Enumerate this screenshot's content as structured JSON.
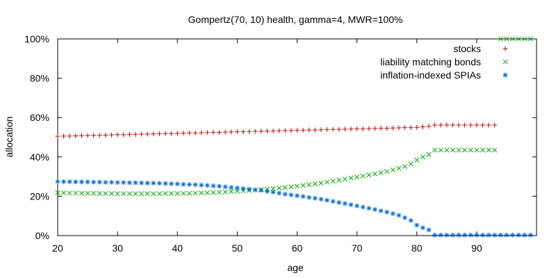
{
  "chart_data": {
    "type": "scatter",
    "title": "Gompertz(70, 10) health, gamma=4, MWR=100%",
    "xlabel": "age",
    "ylabel": "allocation",
    "xlim": [
      20,
      100
    ],
    "ylim": [
      0,
      100
    ],
    "x_ticks": [
      20,
      30,
      40,
      50,
      60,
      70,
      80,
      90
    ],
    "x_tick_labels": [
      "20",
      "30",
      "40",
      "50",
      "60",
      "70",
      "80",
      "90"
    ],
    "y_ticks": [
      0,
      20,
      40,
      60,
      80,
      100
    ],
    "y_tick_labels": [
      "0%",
      "20%",
      "40%",
      "60%",
      "80%",
      "100%"
    ],
    "grid": false,
    "legend_position": "top-right",
    "series": [
      {
        "name": "stocks",
        "marker": "plus",
        "color": "#cc0000",
        "x": [
          20,
          21,
          22,
          23,
          24,
          25,
          26,
          27,
          28,
          29,
          30,
          31,
          32,
          33,
          34,
          35,
          36,
          37,
          38,
          39,
          40,
          41,
          42,
          43,
          44,
          45,
          46,
          47,
          48,
          49,
          50,
          51,
          52,
          53,
          54,
          55,
          56,
          57,
          58,
          59,
          60,
          61,
          62,
          63,
          64,
          65,
          66,
          67,
          68,
          69,
          70,
          71,
          72,
          73,
          74,
          75,
          76,
          77,
          78,
          79,
          80,
          81,
          82,
          83,
          84,
          85,
          86,
          87,
          88,
          89,
          90,
          91,
          92,
          93
        ],
        "y": [
          50.5,
          50.6,
          50.6,
          50.7,
          50.8,
          50.9,
          51.0,
          51.0,
          51.1,
          51.2,
          51.3,
          51.3,
          51.4,
          51.5,
          51.6,
          51.6,
          51.7,
          51.8,
          51.9,
          51.9,
          52.0,
          52.1,
          52.2,
          52.2,
          52.3,
          52.4,
          52.5,
          52.5,
          52.6,
          52.7,
          52.8,
          52.8,
          52.9,
          53.0,
          53.1,
          53.1,
          53.2,
          53.3,
          53.4,
          53.4,
          53.5,
          53.6,
          53.7,
          53.7,
          53.8,
          53.9,
          54.0,
          54.0,
          54.1,
          54.2,
          54.3,
          54.3,
          54.4,
          54.5,
          54.6,
          54.6,
          54.7,
          54.8,
          54.9,
          54.9,
          55.0,
          55.3,
          55.6,
          56.2,
          56.2,
          56.2,
          56.2,
          56.2,
          56.2,
          56.2,
          56.2,
          56.2,
          56.2,
          56.2
        ]
      },
      {
        "name": "liability matching bonds",
        "marker": "cross",
        "color": "#00aa00",
        "x": [
          20,
          21,
          22,
          23,
          24,
          25,
          26,
          27,
          28,
          29,
          30,
          31,
          32,
          33,
          34,
          35,
          36,
          37,
          38,
          39,
          40,
          41,
          42,
          43,
          44,
          45,
          46,
          47,
          48,
          49,
          50,
          51,
          52,
          53,
          54,
          55,
          56,
          57,
          58,
          59,
          60,
          61,
          62,
          63,
          64,
          65,
          66,
          67,
          68,
          69,
          70,
          71,
          72,
          73,
          74,
          75,
          76,
          77,
          78,
          79,
          80,
          81,
          82,
          83,
          84,
          85,
          86,
          87,
          88,
          89,
          90,
          91,
          92,
          93,
          94,
          95,
          96,
          97,
          98,
          99
        ],
        "y": [
          21.8,
          21.7,
          21.6,
          21.6,
          21.5,
          21.5,
          21.5,
          21.4,
          21.4,
          21.4,
          21.3,
          21.3,
          21.3,
          21.3,
          21.3,
          21.3,
          21.3,
          21.3,
          21.4,
          21.4,
          21.4,
          21.5,
          21.5,
          21.6,
          21.7,
          21.8,
          21.9,
          22.0,
          22.2,
          22.4,
          22.6,
          22.8,
          23.0,
          23.2,
          23.4,
          23.6,
          23.9,
          24.2,
          24.5,
          24.8,
          25.1,
          25.5,
          25.9,
          26.3,
          26.7,
          27.2,
          27.7,
          28.2,
          28.7,
          29.3,
          29.8,
          30.3,
          30.8,
          31.4,
          32.0,
          32.6,
          33.4,
          34.2,
          35.2,
          36.4,
          38.4,
          40.0,
          41.2,
          43.5,
          43.5,
          43.5,
          43.5,
          43.5,
          43.5,
          43.5,
          43.5,
          43.5,
          43.5,
          43.5,
          100,
          100,
          100,
          100,
          100,
          100
        ]
      },
      {
        "name": "inflation-indexed SPIAs",
        "marker": "star",
        "color": "#0066dd",
        "x": [
          20,
          21,
          22,
          23,
          24,
          25,
          26,
          27,
          28,
          29,
          30,
          31,
          32,
          33,
          34,
          35,
          36,
          37,
          38,
          39,
          40,
          41,
          42,
          43,
          44,
          45,
          46,
          47,
          48,
          49,
          50,
          51,
          52,
          53,
          54,
          55,
          56,
          57,
          58,
          59,
          60,
          61,
          62,
          63,
          64,
          65,
          66,
          67,
          68,
          69,
          70,
          71,
          72,
          73,
          74,
          75,
          76,
          77,
          78,
          79,
          80,
          81,
          82,
          83,
          84,
          85,
          86,
          87,
          88,
          89,
          90,
          91,
          92,
          93,
          94,
          95,
          96,
          97,
          98,
          99
        ],
        "y": [
          27.5,
          27.4,
          27.4,
          27.3,
          27.3,
          27.3,
          27.2,
          27.2,
          27.1,
          27.1,
          27.0,
          27.0,
          26.9,
          26.9,
          26.8,
          26.7,
          26.7,
          26.6,
          26.5,
          26.4,
          26.3,
          26.1,
          26.0,
          25.9,
          25.7,
          25.5,
          25.3,
          25.1,
          24.8,
          24.5,
          24.2,
          23.9,
          23.6,
          23.3,
          23.0,
          22.5,
          22.1,
          21.6,
          21.1,
          20.7,
          20.3,
          19.9,
          19.4,
          19.0,
          18.5,
          18.0,
          17.4,
          16.8,
          16.3,
          15.7,
          15.1,
          14.5,
          13.9,
          13.3,
          12.6,
          12.0,
          11.2,
          10.3,
          9.1,
          7.7,
          5.3,
          4.0,
          2.9,
          0.3,
          0.3,
          0.3,
          0.3,
          0.3,
          0.3,
          0.3,
          0.3,
          0.3,
          0.3,
          0.3,
          0.3,
          0.3,
          0.3,
          0.3,
          0.3,
          0.3
        ]
      }
    ]
  }
}
